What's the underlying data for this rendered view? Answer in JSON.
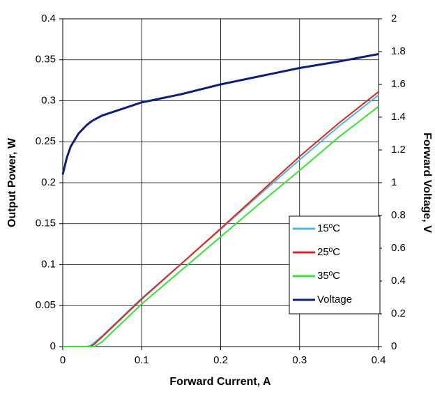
{
  "chart_data": {
    "type": "line",
    "xlabel": "Forward Current, A",
    "ylabel": "Output Power, W",
    "y2label": "Forward Voltage, V",
    "x": [
      0,
      0.005,
      0.01,
      0.02,
      0.03,
      0.035,
      0.04,
      0.05,
      0.1,
      0.15,
      0.2,
      0.25,
      0.3,
      0.35,
      0.4
    ],
    "series": [
      {
        "name": "15ºC",
        "color": "#4bb8e6",
        "values": [
          0,
          0,
          0,
          0,
          0,
          0.001,
          0.005,
          0.013,
          0.059,
          0.101,
          0.143,
          0.186,
          0.228,
          0.269,
          0.307
        ]
      },
      {
        "name": "25ºC",
        "color": "#e8221b",
        "values": [
          0,
          0,
          0,
          0,
          0,
          0,
          0.003,
          0.012,
          0.058,
          0.101,
          0.144,
          0.188,
          0.232,
          0.273,
          0.311
        ]
      },
      {
        "name": "35ºC",
        "color": "#33e633",
        "values": [
          0,
          0,
          0,
          0,
          0,
          0,
          0,
          0.006,
          0.052,
          0.093,
          0.134,
          0.175,
          0.215,
          0.256,
          0.293
        ]
      },
      {
        "name": "Voltage",
        "color": "#0d1f78",
        "axis": "y2",
        "values": [
          1.05,
          1.15,
          1.22,
          1.3,
          1.35,
          1.37,
          1.385,
          1.41,
          1.49,
          1.54,
          1.6,
          1.65,
          1.7,
          1.74,
          1.785
        ]
      }
    ],
    "xlim": [
      0,
      0.4
    ],
    "xticks": [
      0,
      0.1,
      0.2,
      0.3,
      0.4
    ],
    "ylim": [
      0,
      0.4
    ],
    "yticks": [
      0,
      0.05,
      0.1,
      0.15,
      0.2,
      0.25,
      0.3,
      0.35,
      0.4
    ],
    "y2lim": [
      0,
      2
    ],
    "y2ticks": [
      0,
      0.2,
      0.4,
      0.6,
      0.8,
      1,
      1.2,
      1.4,
      1.6,
      1.8,
      2
    ],
    "grid": true,
    "legend": "lower-right"
  }
}
